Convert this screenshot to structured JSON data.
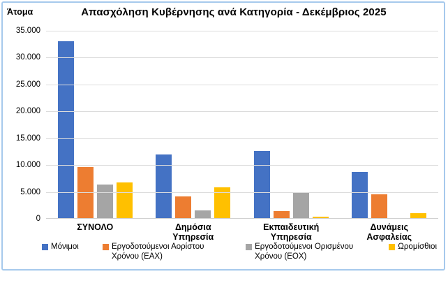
{
  "window": {
    "background": "#FFFFFF",
    "chart_border_color": "#A6C9EC"
  },
  "title": "Απασχόληση Κυβέρνησης ανά Κατηγορία - Δεκέμβριος 2025",
  "y_axis": {
    "label": "Άτομα",
    "ticks": [
      {
        "label": "35.000",
        "value": 35000
      },
      {
        "label": "30.000",
        "value": 30000
      },
      {
        "label": "25.000",
        "value": 25000
      },
      {
        "label": "20.000",
        "value": 20000
      },
      {
        "label": "15.000",
        "value": 15000
      },
      {
        "label": "10.000",
        "value": 10000
      },
      {
        "label": "5.000",
        "value": 5000
      },
      {
        "label": "0",
        "value": 0
      }
    ]
  },
  "chart_data": {
    "type": "bar",
    "title": "Απασχόληση Κυβέρνησης ανά Κατηγορία - Δεκέμβριος 2025",
    "xlabel": "",
    "ylabel": "Άτομα",
    "ylim": [
      0,
      35000
    ],
    "grid": true,
    "legend_position": "bottom",
    "gridline_color": "#DCDCDC",
    "categories": [
      "ΣΥΝΟΛΟ",
      "Δημόσια Υπηρεσία",
      "Εκπαιδευτική Υπηρεσία",
      "Δυνάμεις Ασφαλείας"
    ],
    "series": [
      {
        "name": "Μόνιμοι",
        "color": "#4472C4",
        "values": [
          33000,
          11900,
          12500,
          8600
        ]
      },
      {
        "name": "Εργοδοτούμενοι Αορίστου Χρόνου (ΕΑΧ)",
        "color": "#ED7D31",
        "values": [
          9600,
          4100,
          1300,
          4400
        ]
      },
      {
        "name": "Εργοδοτούμενοι Ορισμένου Χρόνου (ΕΟΧ)",
        "color": "#A5A5A5",
        "values": [
          6300,
          1500,
          4800,
          0
        ]
      },
      {
        "name": "Ωρομίσθιοι",
        "color": "#FFC000",
        "values": [
          6600,
          5700,
          200,
          900
        ]
      }
    ]
  }
}
